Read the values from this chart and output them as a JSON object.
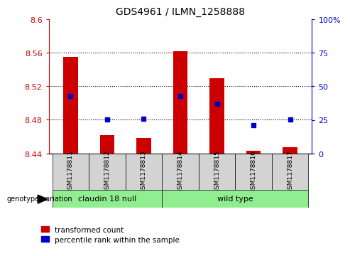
{
  "title": "GDS4961 / ILMN_1258888",
  "samples": [
    "GSM1178811",
    "GSM1178812",
    "GSM1178813",
    "GSM1178814",
    "GSM1178815",
    "GSM1178816",
    "GSM1178817"
  ],
  "red_values": [
    8.555,
    8.462,
    8.458,
    8.562,
    8.53,
    8.443,
    8.447
  ],
  "blue_values": [
    8.508,
    8.48,
    8.481,
    8.508,
    8.499,
    8.474,
    8.48
  ],
  "bar_base": 8.44,
  "ylim_left": [
    8.44,
    8.6
  ],
  "yticks_left": [
    8.44,
    8.48,
    8.52,
    8.56,
    8.6
  ],
  "ytick_left_labels": [
    "8.44",
    "8.48",
    "8.52",
    "8.56",
    "8.6"
  ],
  "yticks_right_labels": [
    "0",
    "25",
    "50",
    "75",
    "100%"
  ],
  "yticks_right_pct": [
    0,
    25,
    50,
    75,
    100
  ],
  "groups": [
    {
      "label": "claudin 18 null",
      "start": 0,
      "end": 3,
      "color": "#90ee90"
    },
    {
      "label": "wild type",
      "start": 3,
      "end": 7,
      "color": "#90ee90"
    }
  ],
  "group_label_prefix": "genotype/variation",
  "legend_red": "transformed count",
  "legend_blue": "percentile rank within the sample",
  "red_color": "#cc0000",
  "blue_color": "#0000cc",
  "bar_width": 0.4,
  "bg_color": "#d3d3d3",
  "dotted_lines": [
    8.48,
    8.52,
    8.56
  ],
  "ylim_range": 0.16,
  "ymin": 8.44
}
